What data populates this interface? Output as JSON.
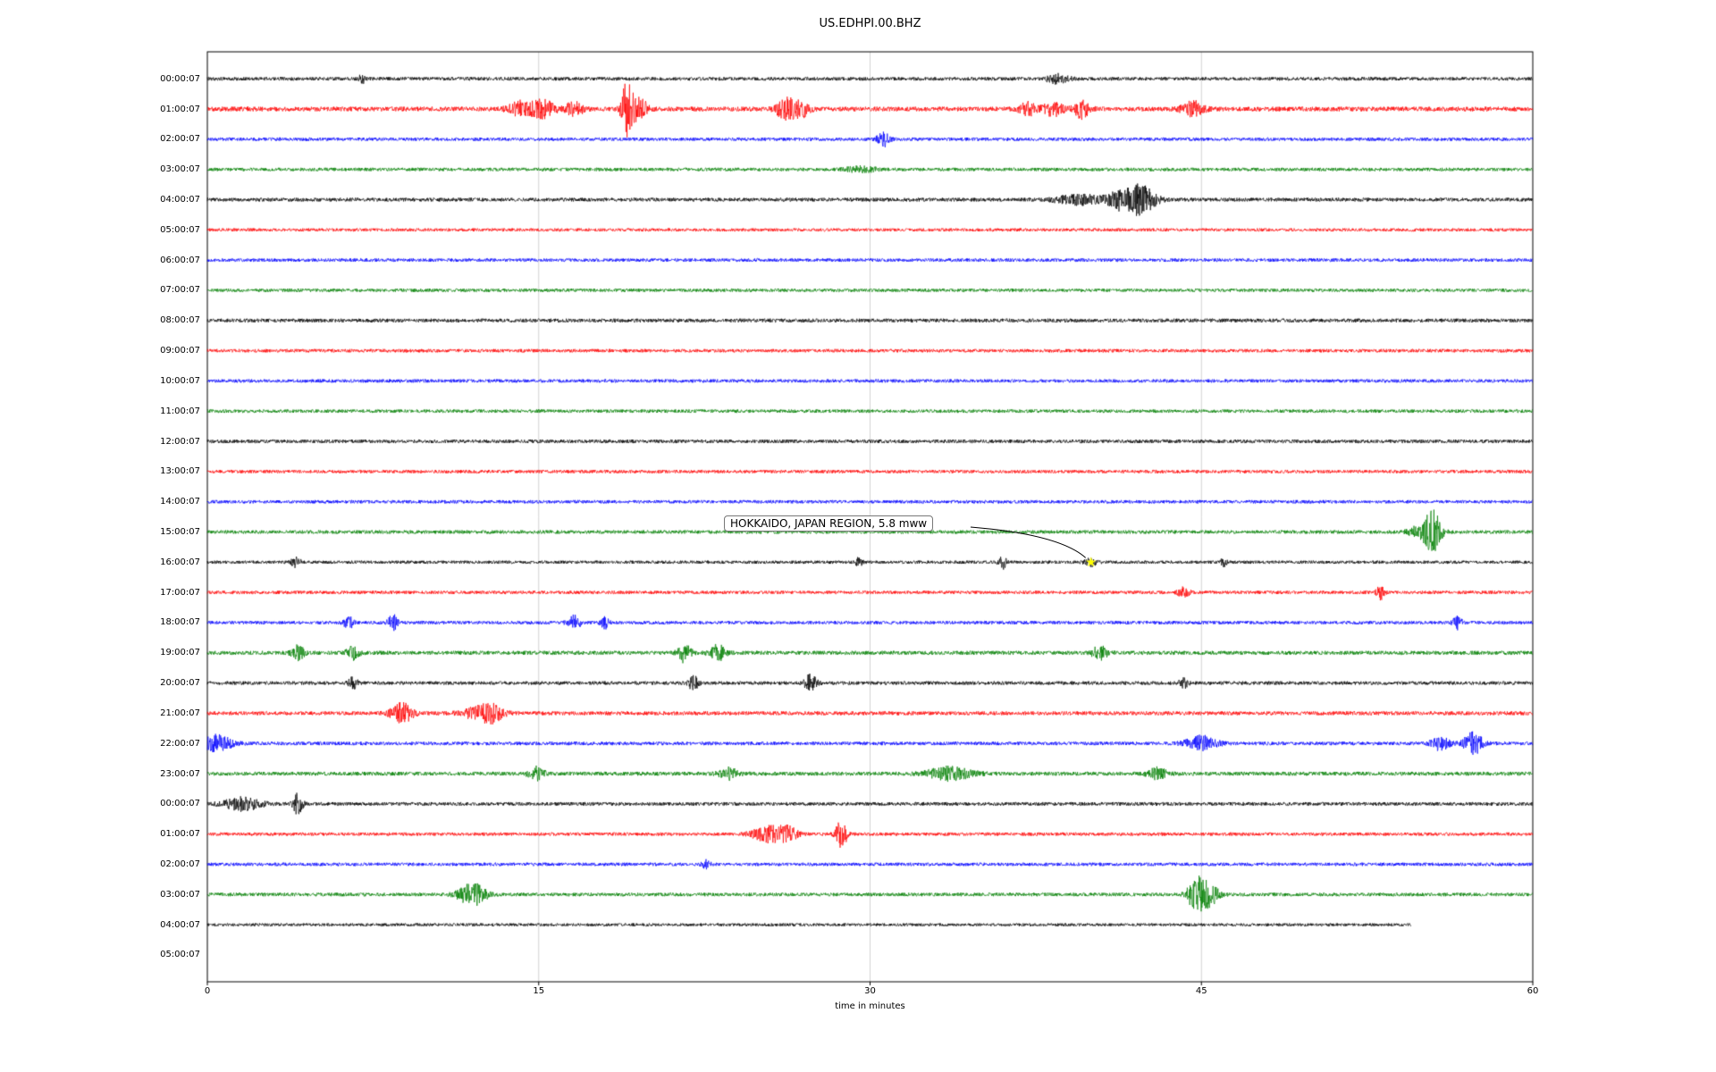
{
  "chart_data": {
    "type": "line",
    "subtype": "seismogram-helicorder",
    "title": "US.EDHPI.00.BHZ",
    "xlabel": "time in minutes",
    "xlim": [
      0,
      60
    ],
    "x_ticks": [
      "0",
      "15",
      "30",
      "45",
      "60"
    ],
    "x_tick_values": [
      0,
      15,
      30,
      45,
      60
    ],
    "grid_x": [
      15,
      30,
      45
    ],
    "grid": true,
    "legend": false,
    "trace_color_cycle": [
      "#000000",
      "#ff0000",
      "#0000ff",
      "#008000"
    ],
    "rows": [
      {
        "label": "00:00:07",
        "color": "#000000",
        "noise": 2.0,
        "end": 60,
        "events": [
          [
            7.0,
            7,
            0.08
          ],
          [
            38.5,
            5,
            0.35
          ]
        ]
      },
      {
        "label": "01:00:07",
        "color": "#ff0000",
        "noise": 2.6,
        "end": 60,
        "events": [
          [
            14.2,
            8,
            0.4
          ],
          [
            15.2,
            10,
            0.35
          ],
          [
            16.6,
            7,
            0.3
          ],
          [
            19.0,
            30,
            0.18
          ],
          [
            19.5,
            12,
            0.3
          ],
          [
            26.2,
            12,
            0.3
          ],
          [
            26.9,
            8,
            0.25
          ],
          [
            37.2,
            7,
            0.3
          ],
          [
            38.3,
            8,
            0.3
          ],
          [
            39.6,
            10,
            0.25
          ],
          [
            44.6,
            8,
            0.35
          ]
        ]
      },
      {
        "label": "02:00:07",
        "color": "#0000ff",
        "noise": 1.9,
        "end": 60,
        "events": [
          [
            30.6,
            8,
            0.2
          ]
        ]
      },
      {
        "label": "03:00:07",
        "color": "#008000",
        "noise": 1.9,
        "end": 60,
        "events": [
          [
            29.6,
            3,
            0.5
          ]
        ]
      },
      {
        "label": "04:00:07",
        "color": "#000000",
        "noise": 2.1,
        "end": 60,
        "events": [
          [
            39.5,
            5,
            0.8
          ],
          [
            41.3,
            8,
            0.4
          ],
          [
            42.2,
            16,
            0.5
          ]
        ]
      },
      {
        "label": "05:00:07",
        "color": "#ff0000",
        "noise": 1.8,
        "end": 60,
        "events": []
      },
      {
        "label": "06:00:07",
        "color": "#0000ff",
        "noise": 1.9,
        "end": 60,
        "events": []
      },
      {
        "label": "07:00:07",
        "color": "#008000",
        "noise": 1.9,
        "end": 60,
        "events": []
      },
      {
        "label": "08:00:07",
        "color": "#000000",
        "noise": 2.1,
        "end": 60,
        "events": []
      },
      {
        "label": "09:00:07",
        "color": "#ff0000",
        "noise": 1.9,
        "end": 60,
        "events": []
      },
      {
        "label": "10:00:07",
        "color": "#0000ff",
        "noise": 1.9,
        "end": 60,
        "events": []
      },
      {
        "label": "11:00:07",
        "color": "#008000",
        "noise": 1.9,
        "end": 60,
        "events": []
      },
      {
        "label": "12:00:07",
        "color": "#000000",
        "noise": 2.0,
        "end": 60,
        "events": []
      },
      {
        "label": "13:00:07",
        "color": "#ff0000",
        "noise": 1.9,
        "end": 60,
        "events": []
      },
      {
        "label": "14:00:07",
        "color": "#0000ff",
        "noise": 1.9,
        "end": 60,
        "events": []
      },
      {
        "label": "15:00:07",
        "color": "#008000",
        "noise": 2.0,
        "end": 60,
        "events": [
          [
            55.0,
            8,
            0.4
          ],
          [
            55.5,
            20,
            0.25
          ]
        ]
      },
      {
        "label": "16:00:07",
        "color": "#000000",
        "noise": 1.8,
        "end": 60,
        "events": [
          [
            4.0,
            6,
            0.15
          ],
          [
            29.5,
            5,
            0.1
          ],
          [
            36.0,
            7,
            0.12
          ],
          [
            40.0,
            4,
            0.2
          ],
          [
            46.0,
            4,
            0.1
          ]
        ]
      },
      {
        "label": "17:00:07",
        "color": "#ff0000",
        "noise": 1.9,
        "end": 60,
        "events": [
          [
            44.2,
            5,
            0.2
          ],
          [
            53.1,
            8,
            0.12
          ]
        ]
      },
      {
        "label": "18:00:07",
        "color": "#0000ff",
        "noise": 1.9,
        "end": 60,
        "events": [
          [
            6.4,
            7,
            0.15
          ],
          [
            8.4,
            9,
            0.15
          ],
          [
            16.6,
            8,
            0.2
          ],
          [
            18.0,
            6,
            0.15
          ],
          [
            56.6,
            7,
            0.15
          ]
        ]
      },
      {
        "label": "19:00:07",
        "color": "#008000",
        "noise": 2.2,
        "end": 60,
        "events": [
          [
            4.1,
            8,
            0.2
          ],
          [
            6.6,
            7,
            0.2
          ],
          [
            21.6,
            11,
            0.2
          ],
          [
            23.1,
            9,
            0.25
          ],
          [
            40.4,
            7,
            0.25
          ]
        ]
      },
      {
        "label": "20:00:07",
        "color": "#000000",
        "noise": 2.0,
        "end": 60,
        "events": [
          [
            6.6,
            6,
            0.15
          ],
          [
            22.0,
            8,
            0.15
          ],
          [
            27.3,
            9,
            0.2
          ],
          [
            44.2,
            5,
            0.15
          ]
        ]
      },
      {
        "label": "21:00:07",
        "color": "#ff0000",
        "noise": 2.2,
        "end": 60,
        "events": [
          [
            8.8,
            11,
            0.35
          ],
          [
            12.4,
            7,
            0.6
          ],
          [
            12.9,
            6,
            0.3
          ]
        ]
      },
      {
        "label": "22:00:07",
        "color": "#0000ff",
        "noise": 2.0,
        "end": 60,
        "events": [
          [
            0.4,
            9,
            0.5
          ],
          [
            45.0,
            8,
            0.5
          ],
          [
            55.8,
            7,
            0.3
          ],
          [
            57.3,
            12,
            0.3
          ]
        ]
      },
      {
        "label": "23:00:07",
        "color": "#008000",
        "noise": 2.2,
        "end": 60,
        "events": [
          [
            14.9,
            7,
            0.25
          ],
          [
            23.6,
            6,
            0.3
          ],
          [
            33.6,
            7,
            0.7
          ],
          [
            43.0,
            6,
            0.3
          ]
        ]
      },
      {
        "label": "00:00:07",
        "color": "#000000",
        "noise": 2.0,
        "end": 60,
        "events": [
          [
            1.6,
            7,
            0.6
          ],
          [
            4.1,
            12,
            0.15
          ]
        ]
      },
      {
        "label": "01:00:07",
        "color": "#ff0000",
        "noise": 1.9,
        "end": 60,
        "events": [
          [
            25.4,
            9,
            0.5
          ],
          [
            26.3,
            7,
            0.3
          ],
          [
            28.7,
            16,
            0.18
          ]
        ]
      },
      {
        "label": "02:00:07",
        "color": "#0000ff",
        "noise": 1.9,
        "end": 60,
        "events": [
          [
            22.6,
            4,
            0.15
          ]
        ]
      },
      {
        "label": "03:00:07",
        "color": "#008000",
        "noise": 2.0,
        "end": 60,
        "events": [
          [
            11.8,
            9,
            0.4
          ],
          [
            12.3,
            6,
            0.3
          ],
          [
            44.8,
            18,
            0.3
          ],
          [
            45.4,
            10,
            0.3
          ]
        ]
      },
      {
        "label": "04:00:07",
        "color": "#000000",
        "noise": 1.7,
        "end": 54.5,
        "events": []
      },
      {
        "label": "05:00:07",
        "color": "#ff0000",
        "noise": 0,
        "end": 0,
        "events": []
      }
    ],
    "annotation": {
      "text": "HOKKAIDO, JAPAN REGION, 5.8 mww",
      "row_index": 16,
      "minute": 40.0,
      "marker": "star",
      "marker_color": "#ffff00"
    }
  }
}
